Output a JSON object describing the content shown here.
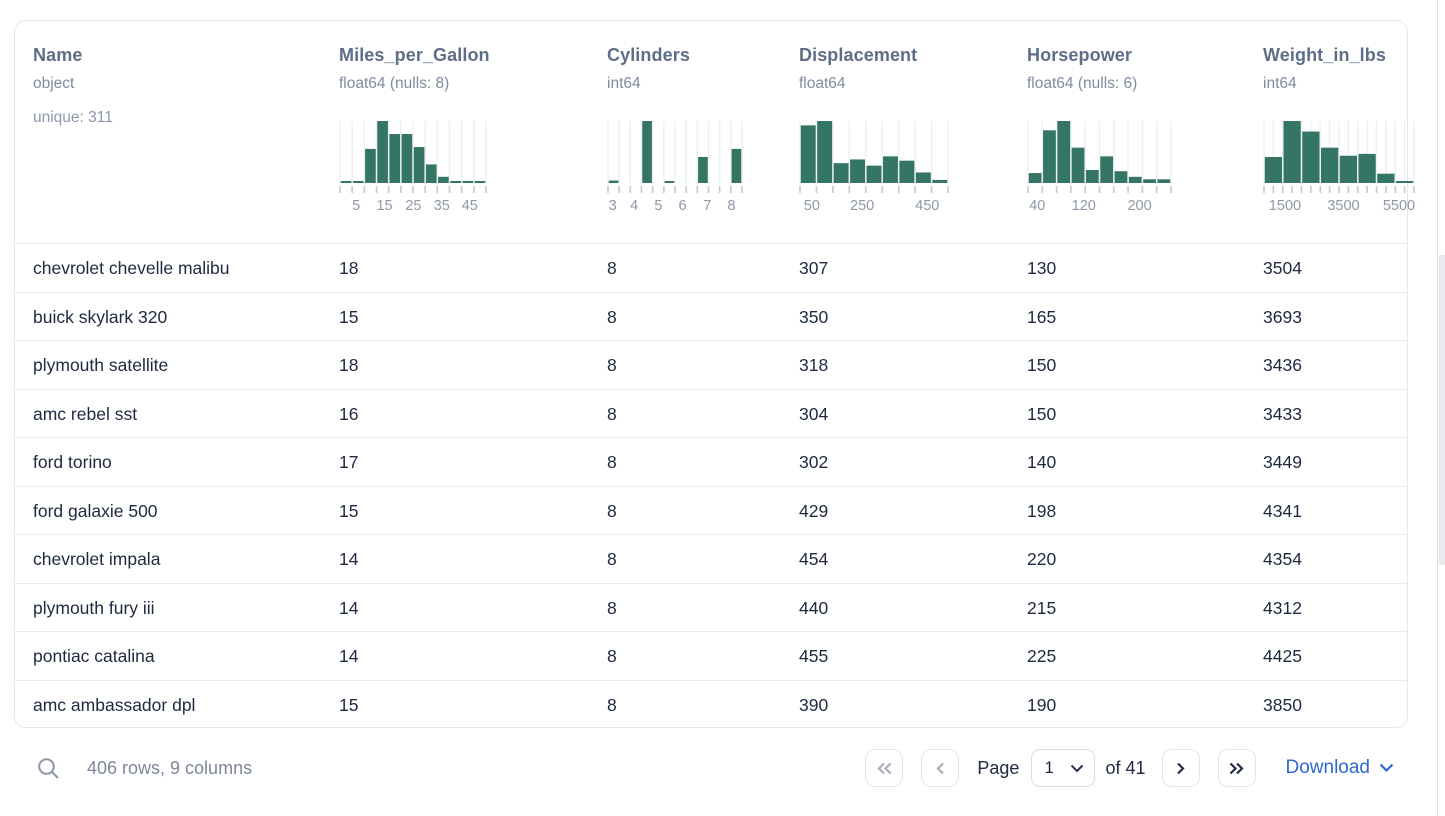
{
  "table": {
    "columns": [
      {
        "name": "Name",
        "type": "object",
        "extra": "unique: 311",
        "histogram": null
      },
      {
        "name": "Miles_per_Gallon",
        "type": "float64 (nulls: 8)",
        "histogram": {
          "type": "bar",
          "bins": [
            0.02,
            0.02,
            0.55,
            1.0,
            0.79,
            0.79,
            0.58,
            0.3,
            0.1,
            0.02,
            0.02,
            0.02
          ],
          "tick_count": 13,
          "axis_labels": [
            {
              "text": "5",
              "frac": 0.111
            },
            {
              "text": "15",
              "frac": 0.305
            },
            {
              "text": "25",
              "frac": 0.503
            },
            {
              "text": "35",
              "frac": 0.697
            },
            {
              "text": "45",
              "frac": 0.889
            }
          ]
        }
      },
      {
        "name": "Cylinders",
        "type": "int64",
        "histogram": {
          "type": "bar",
          "bins": [
            0.04,
            0,
            0,
            1.0,
            0,
            0.03,
            0,
            0,
            0.42,
            0,
            0,
            0.55
          ],
          "tick_count": 13,
          "axis_labels": [
            {
              "text": "3",
              "frac": 0.035
            },
            {
              "text": "4",
              "frac": 0.195
            },
            {
              "text": "5",
              "frac": 0.376
            },
            {
              "text": "6",
              "frac": 0.556
            },
            {
              "text": "7",
              "frac": 0.742
            },
            {
              "text": "8",
              "frac": 0.922
            }
          ]
        }
      },
      {
        "name": "Displacement",
        "type": "float64",
        "histogram": {
          "type": "bar",
          "bins": [
            0.93,
            1.0,
            0.32,
            0.38,
            0.28,
            0.43,
            0.36,
            0.17,
            0.05
          ],
          "tick_count": 10,
          "axis_labels": [
            {
              "text": "50",
              "frac": 0.08
            },
            {
              "text": "250",
              "frac": 0.42
            },
            {
              "text": "450",
              "frac": 0.86
            }
          ]
        }
      },
      {
        "name": "Horsepower",
        "type": "float64 (nulls: 6)",
        "histogram": {
          "type": "bar",
          "bins": [
            0.16,
            0.85,
            1.0,
            0.57,
            0.21,
            0.43,
            0.19,
            0.1,
            0.06,
            0.06
          ],
          "tick_count": 11,
          "axis_labels": [
            {
              "text": "40",
              "frac": 0.065
            },
            {
              "text": "120",
              "frac": 0.39
            },
            {
              "text": "200",
              "frac": 0.78
            }
          ]
        }
      },
      {
        "name": "Weight_in_lbs",
        "type": "int64",
        "histogram": {
          "type": "bar",
          "bins": [
            0.42,
            1.0,
            0.83,
            0.57,
            0.44,
            0.47,
            0.15,
            0.02
          ],
          "tick_count": 17,
          "axis_labels": [
            {
              "text": "1500",
              "frac": 0.14
            },
            {
              "text": "3500",
              "frac": 0.53
            },
            {
              "text": "5500",
              "frac": 0.9
            }
          ]
        }
      }
    ],
    "rows": [
      [
        "chevrolet chevelle malibu",
        "18",
        "8",
        "307",
        "130",
        "3504"
      ],
      [
        "buick skylark 320",
        "15",
        "8",
        "350",
        "165",
        "3693"
      ],
      [
        "plymouth satellite",
        "18",
        "8",
        "318",
        "150",
        "3436"
      ],
      [
        "amc rebel sst",
        "16",
        "8",
        "304",
        "150",
        "3433"
      ],
      [
        "ford torino",
        "17",
        "8",
        "302",
        "140",
        "3449"
      ],
      [
        "ford galaxie 500",
        "15",
        "8",
        "429",
        "198",
        "4341"
      ],
      [
        "chevrolet impala",
        "14",
        "8",
        "454",
        "220",
        "4354"
      ],
      [
        "plymouth fury iii",
        "14",
        "8",
        "440",
        "215",
        "4312"
      ],
      [
        "pontiac catalina",
        "14",
        "8",
        "455",
        "225",
        "4425"
      ],
      [
        "amc ambassador dpl",
        "15",
        "8",
        "390",
        "190",
        "3850"
      ]
    ]
  },
  "footer": {
    "summary": "406 rows, 9 columns",
    "page_label": "Page",
    "page_value": "1",
    "total_label": "of 41",
    "download_label": "Download"
  },
  "colors": {
    "histogram_bar": "#347565",
    "grid_line": "#eef1f4",
    "tick_mark": "#c3c9d2",
    "tick_label": "#8f98a6",
    "header_text": "#5e6d88",
    "meta_text": "#7e8aa0",
    "cell_text": "#1e2940",
    "summary_text": "#7e8798",
    "pagination_text": "#202a42",
    "disabled_chevron": "#a6adbb",
    "enabled_chevron": "#232d44",
    "download_link": "#2f66d0",
    "card_border": "#e3e8ee",
    "row_border": "#e7ecf2"
  }
}
